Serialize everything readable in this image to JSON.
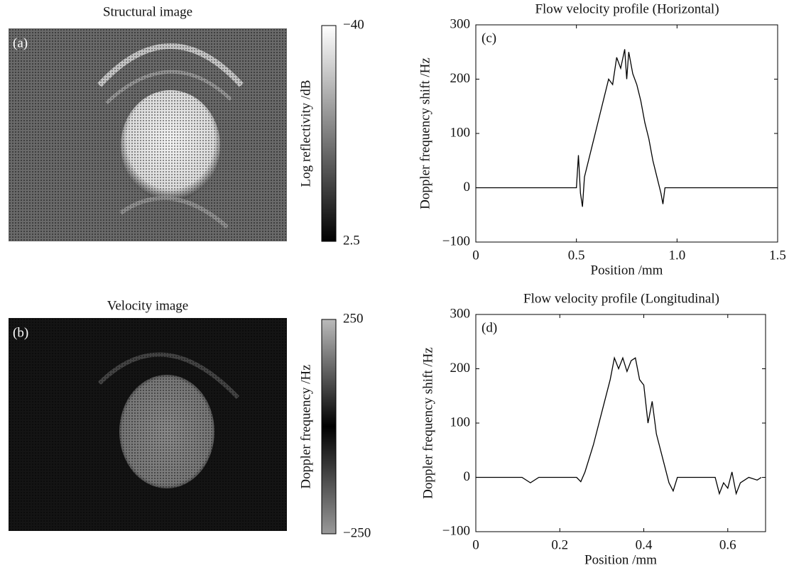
{
  "chart_data": [
    {
      "type": "image",
      "title": "Structural image",
      "panel_label": "(a)",
      "colorbar_label": "Log reflectivity /dB",
      "clim": [
        2.5,
        -40
      ],
      "cticks": [
        {
          "value": -40,
          "label": "−40"
        },
        2.5
      ]
    },
    {
      "type": "image",
      "title": "Velocity image",
      "panel_label": "(b)",
      "colorbar_label": "Doppler frequency /Hz",
      "clim": [
        -250,
        250
      ],
      "cticks": [
        250,
        {
          "value": -250,
          "label": "−250"
        }
      ]
    },
    {
      "type": "line",
      "title": "Flow velocity profile (Horizontal)",
      "panel_label": "(c)",
      "x_label": "Position /mm",
      "y_label": "Doppler frequency shift /Hz",
      "color": "#000000",
      "x": [
        0,
        0.5,
        0.51,
        0.52,
        0.53,
        0.54,
        0.56,
        0.58,
        0.6,
        0.62,
        0.64,
        0.66,
        0.68,
        0.7,
        0.72,
        0.74,
        0.75,
        0.76,
        0.78,
        0.8,
        0.82,
        0.84,
        0.86,
        0.88,
        0.9,
        0.92,
        0.93,
        0.94,
        1.5
      ],
      "values": [
        0,
        0,
        60,
        -10,
        -35,
        20,
        50,
        80,
        110,
        140,
        170,
        200,
        190,
        240,
        220,
        255,
        200,
        250,
        210,
        190,
        160,
        120,
        90,
        50,
        20,
        -10,
        -30,
        0,
        0
      ],
      "xlim": [
        0,
        1.5
      ],
      "xticks": [
        0,
        0.5,
        {
          "value": 1,
          "label": "1.0"
        },
        1.5
      ],
      "ylim": [
        -100,
        300
      ],
      "yticks": [
        {
          "value": -100,
          "label": "−100"
        },
        0,
        100,
        200,
        300
      ]
    },
    {
      "type": "line",
      "title": "Flow velocity profile (Longitudinal)",
      "panel_label": "(d)",
      "x_label": "Position /mm",
      "y_label": "Doppler frequency shift /Hz",
      "color": "#000000",
      "x": [
        0,
        0.11,
        0.13,
        0.15,
        0.24,
        0.25,
        0.26,
        0.28,
        0.3,
        0.32,
        0.33,
        0.34,
        0.35,
        0.36,
        0.37,
        0.38,
        0.39,
        0.4,
        0.41,
        0.42,
        0.43,
        0.44,
        0.45,
        0.46,
        0.47,
        0.48,
        0.57,
        0.58,
        0.59,
        0.6,
        0.61,
        0.62,
        0.63,
        0.65,
        0.67,
        0.68
      ],
      "values": [
        0,
        0,
        -10,
        0,
        0,
        -8,
        10,
        60,
        120,
        180,
        220,
        200,
        220,
        195,
        215,
        220,
        180,
        170,
        100,
        140,
        80,
        50,
        20,
        -10,
        -25,
        0,
        0,
        -30,
        -10,
        -20,
        10,
        -30,
        -10,
        0,
        -5,
        0
      ],
      "xlim": [
        0,
        0.69
      ],
      "xticks": [
        0,
        0.2,
        0.4,
        0.6
      ],
      "ylim": [
        -100,
        300
      ],
      "yticks": [
        {
          "value": -100,
          "label": "−100"
        },
        0,
        100,
        200,
        300
      ]
    }
  ]
}
